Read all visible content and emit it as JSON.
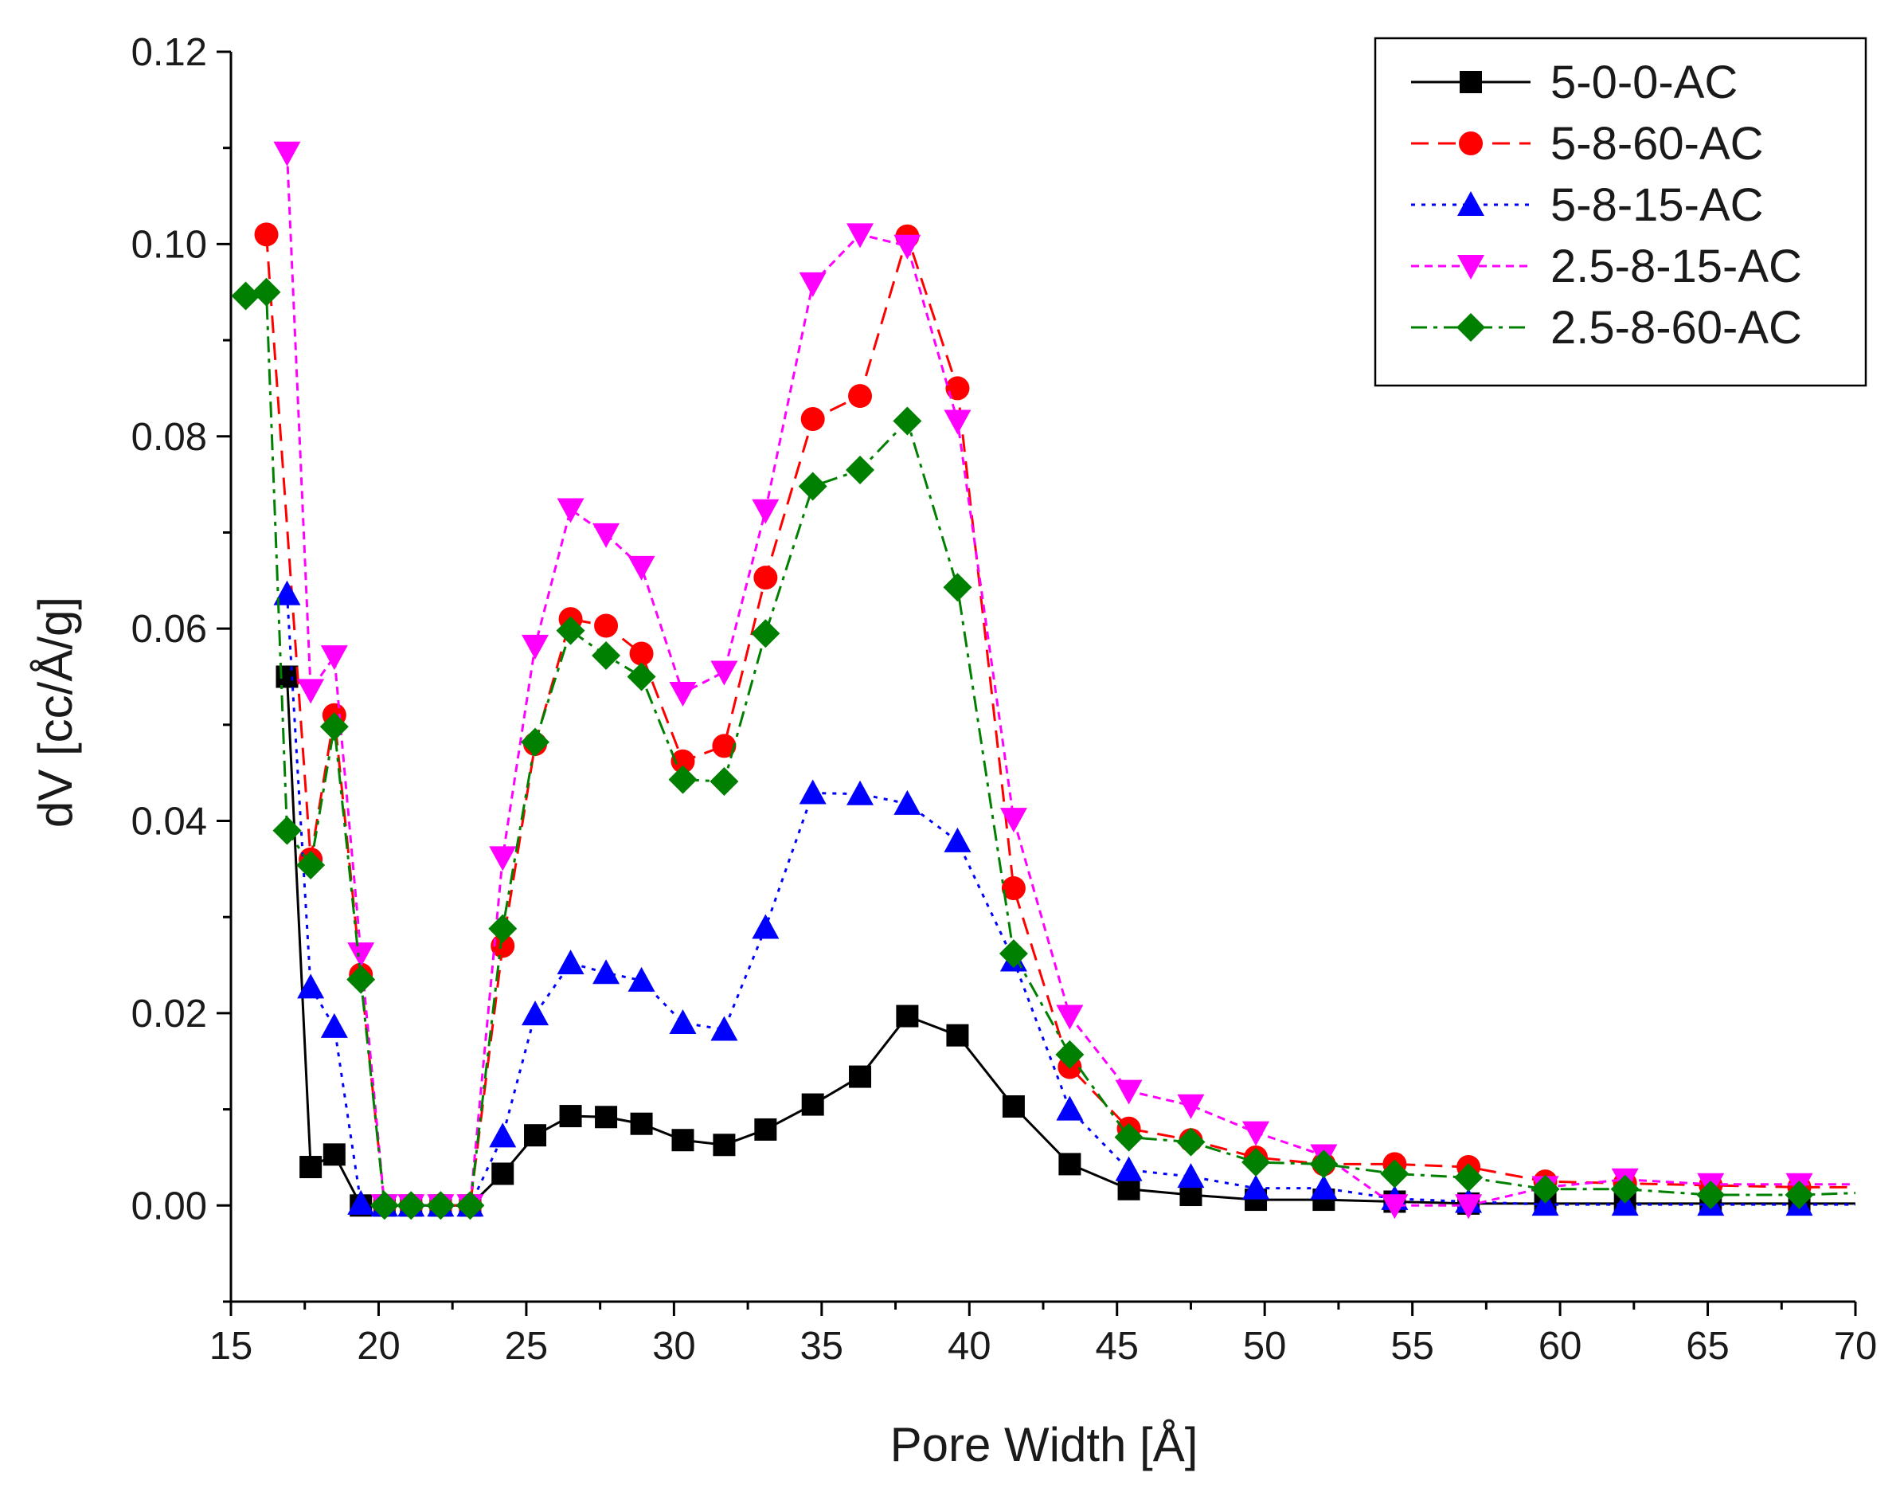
{
  "chart_data": {
    "type": "line",
    "title": "",
    "xlabel": "Pore Width [Å]",
    "ylabel": "dV [cc/Å/g]",
    "xlim": [
      15,
      70
    ],
    "ylim": [
      -0.01,
      0.12
    ],
    "x_ticks": [
      15,
      20,
      25,
      30,
      35,
      40,
      45,
      50,
      55,
      60,
      65,
      70
    ],
    "y_ticks": [
      0.0,
      0.02,
      0.04,
      0.06,
      0.08,
      0.1,
      0.12
    ],
    "x_tick_labels": [
      "15",
      "20",
      "25",
      "30",
      "35",
      "40",
      "45",
      "50",
      "55",
      "60",
      "65",
      "70"
    ],
    "y_tick_labels": [
      "0.00",
      "0.02",
      "0.04",
      "0.06",
      "0.08",
      "0.10",
      "0.12"
    ],
    "grid": false,
    "legend_position": "top-right",
    "series": [
      {
        "name": "5-0-0-AC",
        "color": "#000000",
        "marker": "square",
        "line_style": "solid",
        "x": [
          16.9,
          17.7,
          18.5,
          19.4,
          20.2,
          21.1,
          22.1,
          23.1,
          24.2,
          25.3,
          26.5,
          27.7,
          28.9,
          30.3,
          31.7,
          33.1,
          34.7,
          36.3,
          37.9,
          39.6,
          41.5,
          43.4,
          45.4,
          47.5,
          49.7,
          52.0,
          54.4,
          56.9,
          59.5,
          62.2,
          65.1,
          68.1,
          70.0
        ],
        "y": [
          0.055,
          0.004,
          0.0053,
          0.0,
          0.0,
          0.0,
          0.0,
          0.0,
          0.0033,
          0.0073,
          0.0093,
          0.0092,
          0.0085,
          0.0068,
          0.0063,
          0.0079,
          0.0105,
          0.0134,
          0.0197,
          0.0177,
          0.0103,
          0.0043,
          0.0017,
          0.0011,
          0.0006,
          0.0006,
          0.0004,
          0.0002,
          0.0002,
          0.0002,
          0.0002,
          0.0002,
          0.0002
        ]
      },
      {
        "name": "5-8-60-AC",
        "color": "#ff0000",
        "marker": "circle",
        "line_style": "dashed",
        "x": [
          16.2,
          17.7,
          18.5,
          19.4,
          20.2,
          21.1,
          22.1,
          23.1,
          24.2,
          25.3,
          26.5,
          27.7,
          28.9,
          30.3,
          31.7,
          33.1,
          34.7,
          36.3,
          37.9,
          39.6,
          41.5,
          43.4,
          45.4,
          47.5,
          49.7,
          52.0,
          54.4,
          56.9,
          59.5,
          62.2,
          65.1,
          68.1,
          70.0
        ],
        "y": [
          0.101,
          0.036,
          0.051,
          0.024,
          0.0,
          0.0,
          0.0,
          0.0,
          0.027,
          0.048,
          0.061,
          0.0603,
          0.0574,
          0.0462,
          0.0478,
          0.0653,
          0.0818,
          0.0842,
          0.1008,
          0.085,
          0.033,
          0.0144,
          0.008,
          0.0068,
          0.005,
          0.0043,
          0.0043,
          0.004,
          0.0025,
          0.0023,
          0.0021,
          0.0019,
          0.0019
        ]
      },
      {
        "name": "5-8-15-AC",
        "color": "#0000ff",
        "marker": "triangle-up",
        "line_style": "dotted",
        "x": [
          16.9,
          17.7,
          18.5,
          19.4,
          20.2,
          21.1,
          22.1,
          23.1,
          24.2,
          25.3,
          26.5,
          27.7,
          28.9,
          30.3,
          31.7,
          33.1,
          34.7,
          36.3,
          37.9,
          39.6,
          41.5,
          43.4,
          45.4,
          47.5,
          49.7,
          52.0,
          54.4,
          56.9,
          59.5,
          62.2,
          65.1,
          68.1,
          70.0
        ],
        "y": [
          0.0636,
          0.0227,
          0.0186,
          0.0002,
          0.0,
          0.0,
          0.0,
          0.0,
          0.0072,
          0.0199,
          0.0252,
          0.0242,
          0.0234,
          0.019,
          0.0183,
          0.0289,
          0.0429,
          0.0428,
          0.0418,
          0.0379,
          0.0255,
          0.01,
          0.0037,
          0.003,
          0.0018,
          0.0018,
          0.0007,
          0.0004,
          0.0001,
          0.0001,
          0.0001,
          0.0001,
          0.0001
        ]
      },
      {
        "name": "2.5-8-15-AC",
        "color": "#ff00ff",
        "marker": "triangle-down",
        "line_style": "short-dashed",
        "x": [
          16.9,
          17.7,
          18.5,
          19.4,
          20.2,
          21.1,
          22.1,
          23.1,
          24.2,
          25.3,
          26.5,
          27.7,
          28.9,
          30.3,
          31.7,
          33.1,
          34.7,
          36.3,
          37.9,
          39.6,
          41.5,
          43.4,
          45.4,
          47.5,
          49.7,
          52.0,
          54.4,
          56.9,
          59.5,
          62.2,
          65.1,
          68.1,
          70.0
        ],
        "y": [
          0.1095,
          0.0536,
          0.0571,
          0.0262,
          0.0,
          0.0,
          0.0,
          0.0,
          0.0362,
          0.0582,
          0.0724,
          0.0698,
          0.0664,
          0.0533,
          0.0555,
          0.0723,
          0.0959,
          0.101,
          0.0998,
          0.0816,
          0.0402,
          0.0197,
          0.0119,
          0.0104,
          0.0076,
          0.0052,
          0.0,
          0.0,
          0.0019,
          0.0027,
          0.0022,
          0.0022,
          0.0022
        ]
      },
      {
        "name": "2.5-8-60-AC",
        "color": "#008000",
        "marker": "diamond",
        "line_style": "dash-dot",
        "x": [
          15.5,
          16.2,
          16.9,
          17.7,
          18.5,
          19.4,
          20.2,
          21.1,
          22.1,
          23.1,
          24.2,
          25.3,
          26.5,
          27.7,
          28.9,
          30.3,
          31.7,
          33.1,
          34.7,
          36.3,
          37.9,
          39.6,
          41.5,
          43.4,
          45.4,
          47.5,
          49.7,
          52.0,
          54.4,
          56.9,
          59.5,
          62.2,
          65.1,
          68.1,
          70.0
        ],
        "y": [
          0.0946,
          0.095,
          0.039,
          0.0354,
          0.0498,
          0.0235,
          0.0,
          0.0,
          0.0,
          0.0,
          0.0288,
          0.0482,
          0.0598,
          0.0572,
          0.055,
          0.0443,
          0.0441,
          0.0595,
          0.0748,
          0.0765,
          0.0816,
          0.0643,
          0.0262,
          0.0157,
          0.0071,
          0.0066,
          0.0045,
          0.0043,
          0.0033,
          0.0029,
          0.0017,
          0.0017,
          0.0011,
          0.0011,
          0.0013
        ]
      }
    ]
  }
}
